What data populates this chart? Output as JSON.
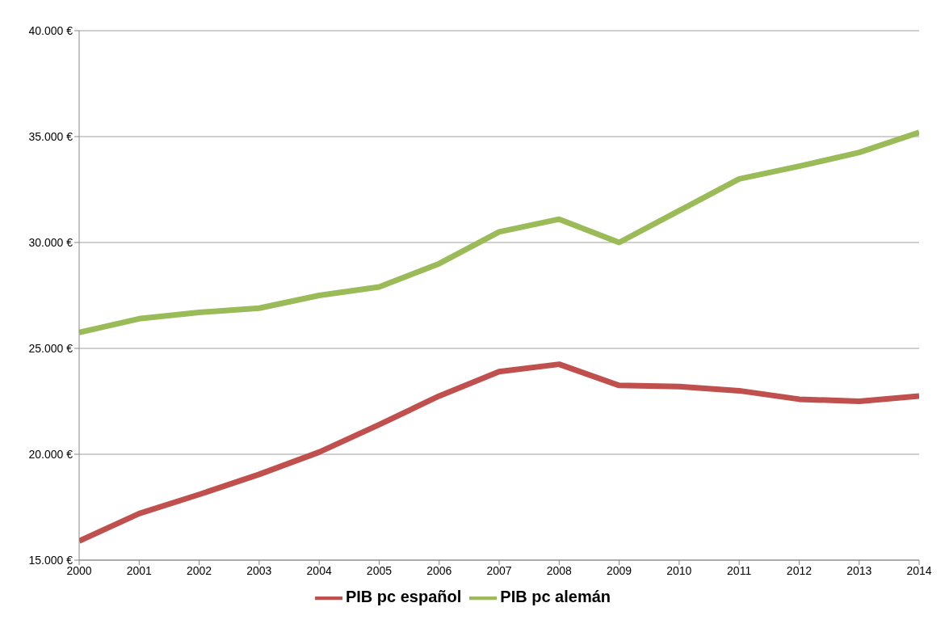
{
  "chart_data": {
    "type": "line",
    "x": [
      2000,
      2001,
      2002,
      2003,
      2004,
      2005,
      2006,
      2007,
      2008,
      2009,
      2010,
      2011,
      2012,
      2013,
      2014
    ],
    "series": [
      {
        "name": "PIB pc español",
        "color": "#c0504d",
        "values": [
          15900,
          17200,
          18100,
          19050,
          20100,
          21400,
          22750,
          23900,
          24250,
          23250,
          23200,
          23000,
          22600,
          22500,
          22750
        ]
      },
      {
        "name": "PIB pc alemán",
        "color": "#9bbb59",
        "values": [
          25750,
          26400,
          26700,
          26900,
          27500,
          27900,
          29000,
          30500,
          31100,
          30000,
          31500,
          33000,
          33600,
          34250,
          35200
        ]
      }
    ],
    "xlim": [
      2000,
      2014
    ],
    "xticks": [
      2000,
      2001,
      2002,
      2003,
      2004,
      2005,
      2006,
      2007,
      2008,
      2009,
      2010,
      2011,
      2012,
      2013,
      2014
    ],
    "ylim": [
      15000,
      40000
    ],
    "yticks": [
      {
        "value": 15000,
        "label": "15.000 €"
      },
      {
        "value": 20000,
        "label": "20.000 €"
      },
      {
        "value": 25000,
        "label": "25.000 €"
      },
      {
        "value": 30000,
        "label": "30.000 €"
      },
      {
        "value": 35000,
        "label": "35.000 €"
      },
      {
        "value": 40000,
        "label": "40.000 €"
      }
    ],
    "grid": "y",
    "legend": "bottom",
    "marker": "none",
    "line_style": "solid"
  }
}
